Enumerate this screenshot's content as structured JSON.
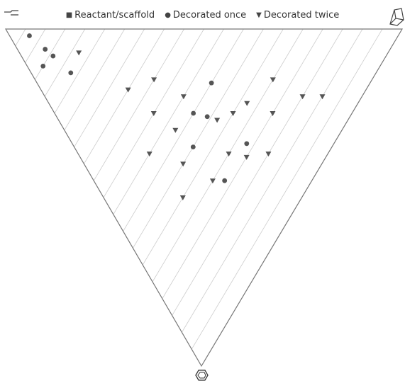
{
  "chart_data": {
    "type": "scatter",
    "subtype": "ternary",
    "legend_position": "top",
    "grid": true,
    "corner_icons": [
      "linear-chain-icon",
      "cage-molecule-icon",
      "benzene-ring-icon"
    ],
    "series": [
      {
        "name": "Reactant/scaffold",
        "marker": "square",
        "color": "#555555",
        "points": []
      },
      {
        "name": "Decorated once",
        "marker": "circle",
        "color": "#555555",
        "points": [
          {
            "a": 0.05,
            "b": 0.93,
            "c": 0.02
          },
          {
            "a": 0.07,
            "b": 0.87,
            "c": 0.06
          },
          {
            "a": 0.08,
            "b": 0.84,
            "c": 0.08
          },
          {
            "a": 0.04,
            "b": 0.85,
            "c": 0.11
          },
          {
            "a": 0.1,
            "b": 0.77,
            "c": 0.13
          },
          {
            "a": 0.44,
            "b": 0.4,
            "c": 0.16
          },
          {
            "a": 0.44,
            "b": 0.22,
            "c": 0.34
          },
          {
            "a": 0.33,
            "b": 0.22,
            "c": 0.45
          },
          {
            "a": 0.35,
            "b": 0.4,
            "c": 0.25
          },
          {
            "a": 0.3,
            "b": 0.35,
            "c": 0.35
          },
          {
            "a": 0.38,
            "b": 0.36,
            "c": 0.26
          }
        ]
      },
      {
        "name": "Decorated twice",
        "marker": "triangle-down",
        "color": "#555555",
        "points": [
          {
            "a": 0.15,
            "b": 0.78,
            "c": 0.07
          },
          {
            "a": 0.3,
            "b": 0.55,
            "c": 0.15
          },
          {
            "a": 0.25,
            "b": 0.5,
            "c": 0.25
          },
          {
            "a": 0.35,
            "b": 0.45,
            "c": 0.2
          },
          {
            "a": 0.4,
            "b": 0.33,
            "c": 0.27
          },
          {
            "a": 0.45,
            "b": 0.3,
            "c": 0.25
          },
          {
            "a": 0.28,
            "b": 0.42,
            "c": 0.3
          },
          {
            "a": 0.5,
            "b": 0.28,
            "c": 0.22
          },
          {
            "a": 0.55,
            "b": 0.2,
            "c": 0.25
          },
          {
            "a": 0.6,
            "b": 0.25,
            "c": 0.15
          },
          {
            "a": 0.38,
            "b": 0.25,
            "c": 0.37
          },
          {
            "a": 0.42,
            "b": 0.2,
            "c": 0.38
          },
          {
            "a": 0.25,
            "b": 0.35,
            "c": 0.4
          },
          {
            "a": 0.48,
            "b": 0.15,
            "c": 0.37
          },
          {
            "a": 0.2,
            "b": 0.3,
            "c": 0.5
          },
          {
            "a": 0.65,
            "b": 0.15,
            "c": 0.2
          },
          {
            "a": 0.3,
            "b": 0.25,
            "c": 0.45
          },
          {
            "a": 0.7,
            "b": 0.1,
            "c": 0.2
          },
          {
            "a": 0.22,
            "b": 0.6,
            "c": 0.18
          },
          {
            "a": 0.18,
            "b": 0.45,
            "c": 0.37
          }
        ]
      }
    ]
  }
}
